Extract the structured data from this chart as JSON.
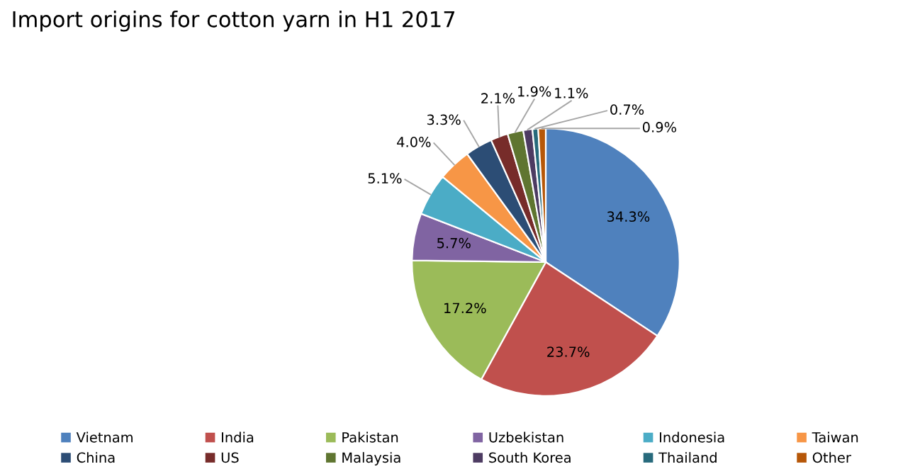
{
  "chart_data": {
    "type": "pie",
    "title": "Import origins for cotton yarn in H1 2017",
    "categories": [
      "Vietnam",
      "India",
      "Pakistan",
      "Uzbekistan",
      "Indonesia",
      "Taiwan",
      "China",
      "US",
      "Malaysia",
      "South Korea",
      "Thailand",
      "Other"
    ],
    "values": [
      34.3,
      23.7,
      17.2,
      5.7,
      5.1,
      4.0,
      3.3,
      2.1,
      1.9,
      1.1,
      0.7,
      0.9
    ],
    "value_labels": [
      "34.3%",
      "23.7%",
      "17.2%",
      "5.7%",
      "5.1%",
      "4.0%",
      "3.3%",
      "2.1%",
      "1.9%",
      "1.1%",
      "0.7%",
      "0.9%"
    ],
    "colors": [
      "#4f81bd",
      "#c0504d",
      "#9bbb59",
      "#8064a2",
      "#4bacc6",
      "#f79646",
      "#2c4d75",
      "#772c2a",
      "#5f7530",
      "#4d3b62",
      "#276a7c",
      "#b65708"
    ],
    "legend": "bottom"
  }
}
